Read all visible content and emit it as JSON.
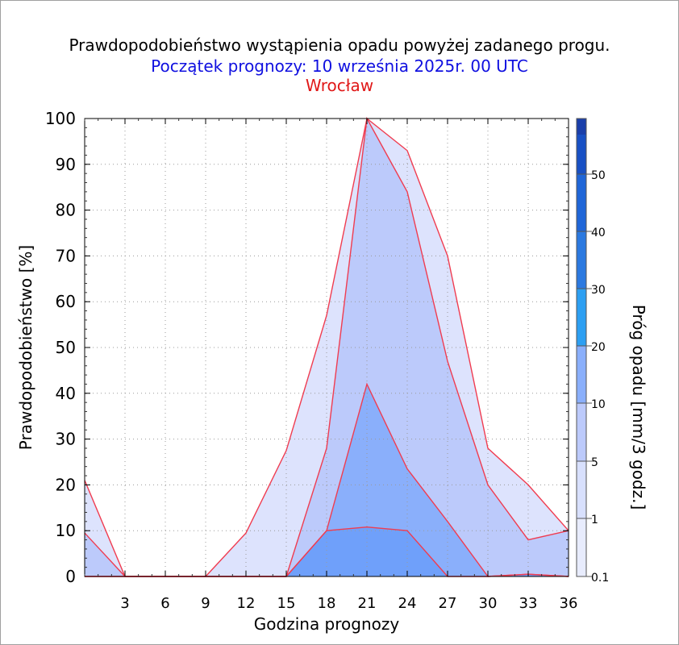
{
  "chart_data": {
    "type": "area",
    "title": "Prawdopodobieństwo wystąpienia opadu powyżej zadanego progu.",
    "subtitle": "Początek prognozy: 10 września 2025r. 00 UTC",
    "station": "Wrocław",
    "xlabel": "Godzina prognozy",
    "ylabel": "Prawdopodobieństwo [%]",
    "x_ticks": [
      3,
      6,
      9,
      12,
      15,
      18,
      21,
      24,
      27,
      30,
      33,
      36
    ],
    "y_ticks": [
      0,
      10,
      20,
      30,
      40,
      50,
      60,
      70,
      80,
      90,
      100
    ],
    "xlim": [
      0,
      36
    ],
    "ylim": [
      0,
      100
    ],
    "grid": true,
    "x": [
      0,
      3,
      6,
      9,
      12,
      15,
      18,
      21,
      24,
      27,
      30,
      33,
      36
    ],
    "series": [
      {
        "threshold": 0.1,
        "color": "#dde3fd",
        "values": [
          21,
          0,
          0,
          0,
          9.5,
          27.5,
          57,
          100,
          93,
          70,
          28,
          20,
          10
        ]
      },
      {
        "threshold": 1,
        "color": "#bccafb",
        "values": [
          9.5,
          0,
          0,
          0,
          0,
          0,
          28,
          100,
          84,
          47,
          20,
          8,
          10
        ]
      },
      {
        "threshold": 5,
        "color": "#8aaffb",
        "values": [
          0,
          0,
          0,
          0,
          0,
          0,
          10,
          42,
          23.5,
          12,
          0,
          0.5,
          0
        ]
      },
      {
        "threshold": 10,
        "color": "#6fa0fa",
        "values": [
          0,
          0,
          0,
          0,
          0,
          0,
          10,
          10.8,
          10,
          0,
          0,
          0.5,
          0
        ]
      }
    ],
    "colorbar": {
      "label": "Próg opadu [mm/3 godz.]",
      "ticks": [
        "0.1",
        "1",
        "5",
        "10",
        "20",
        "30",
        "40",
        "50"
      ],
      "colors": [
        "#e8ecfd",
        "#d8e0fd",
        "#bccafb",
        "#8aaffb",
        "#6fa0fa",
        "#2c9ff2",
        "#2b79e0",
        "#1f66d8",
        "#1850c4",
        "#1a3faa"
      ]
    }
  }
}
